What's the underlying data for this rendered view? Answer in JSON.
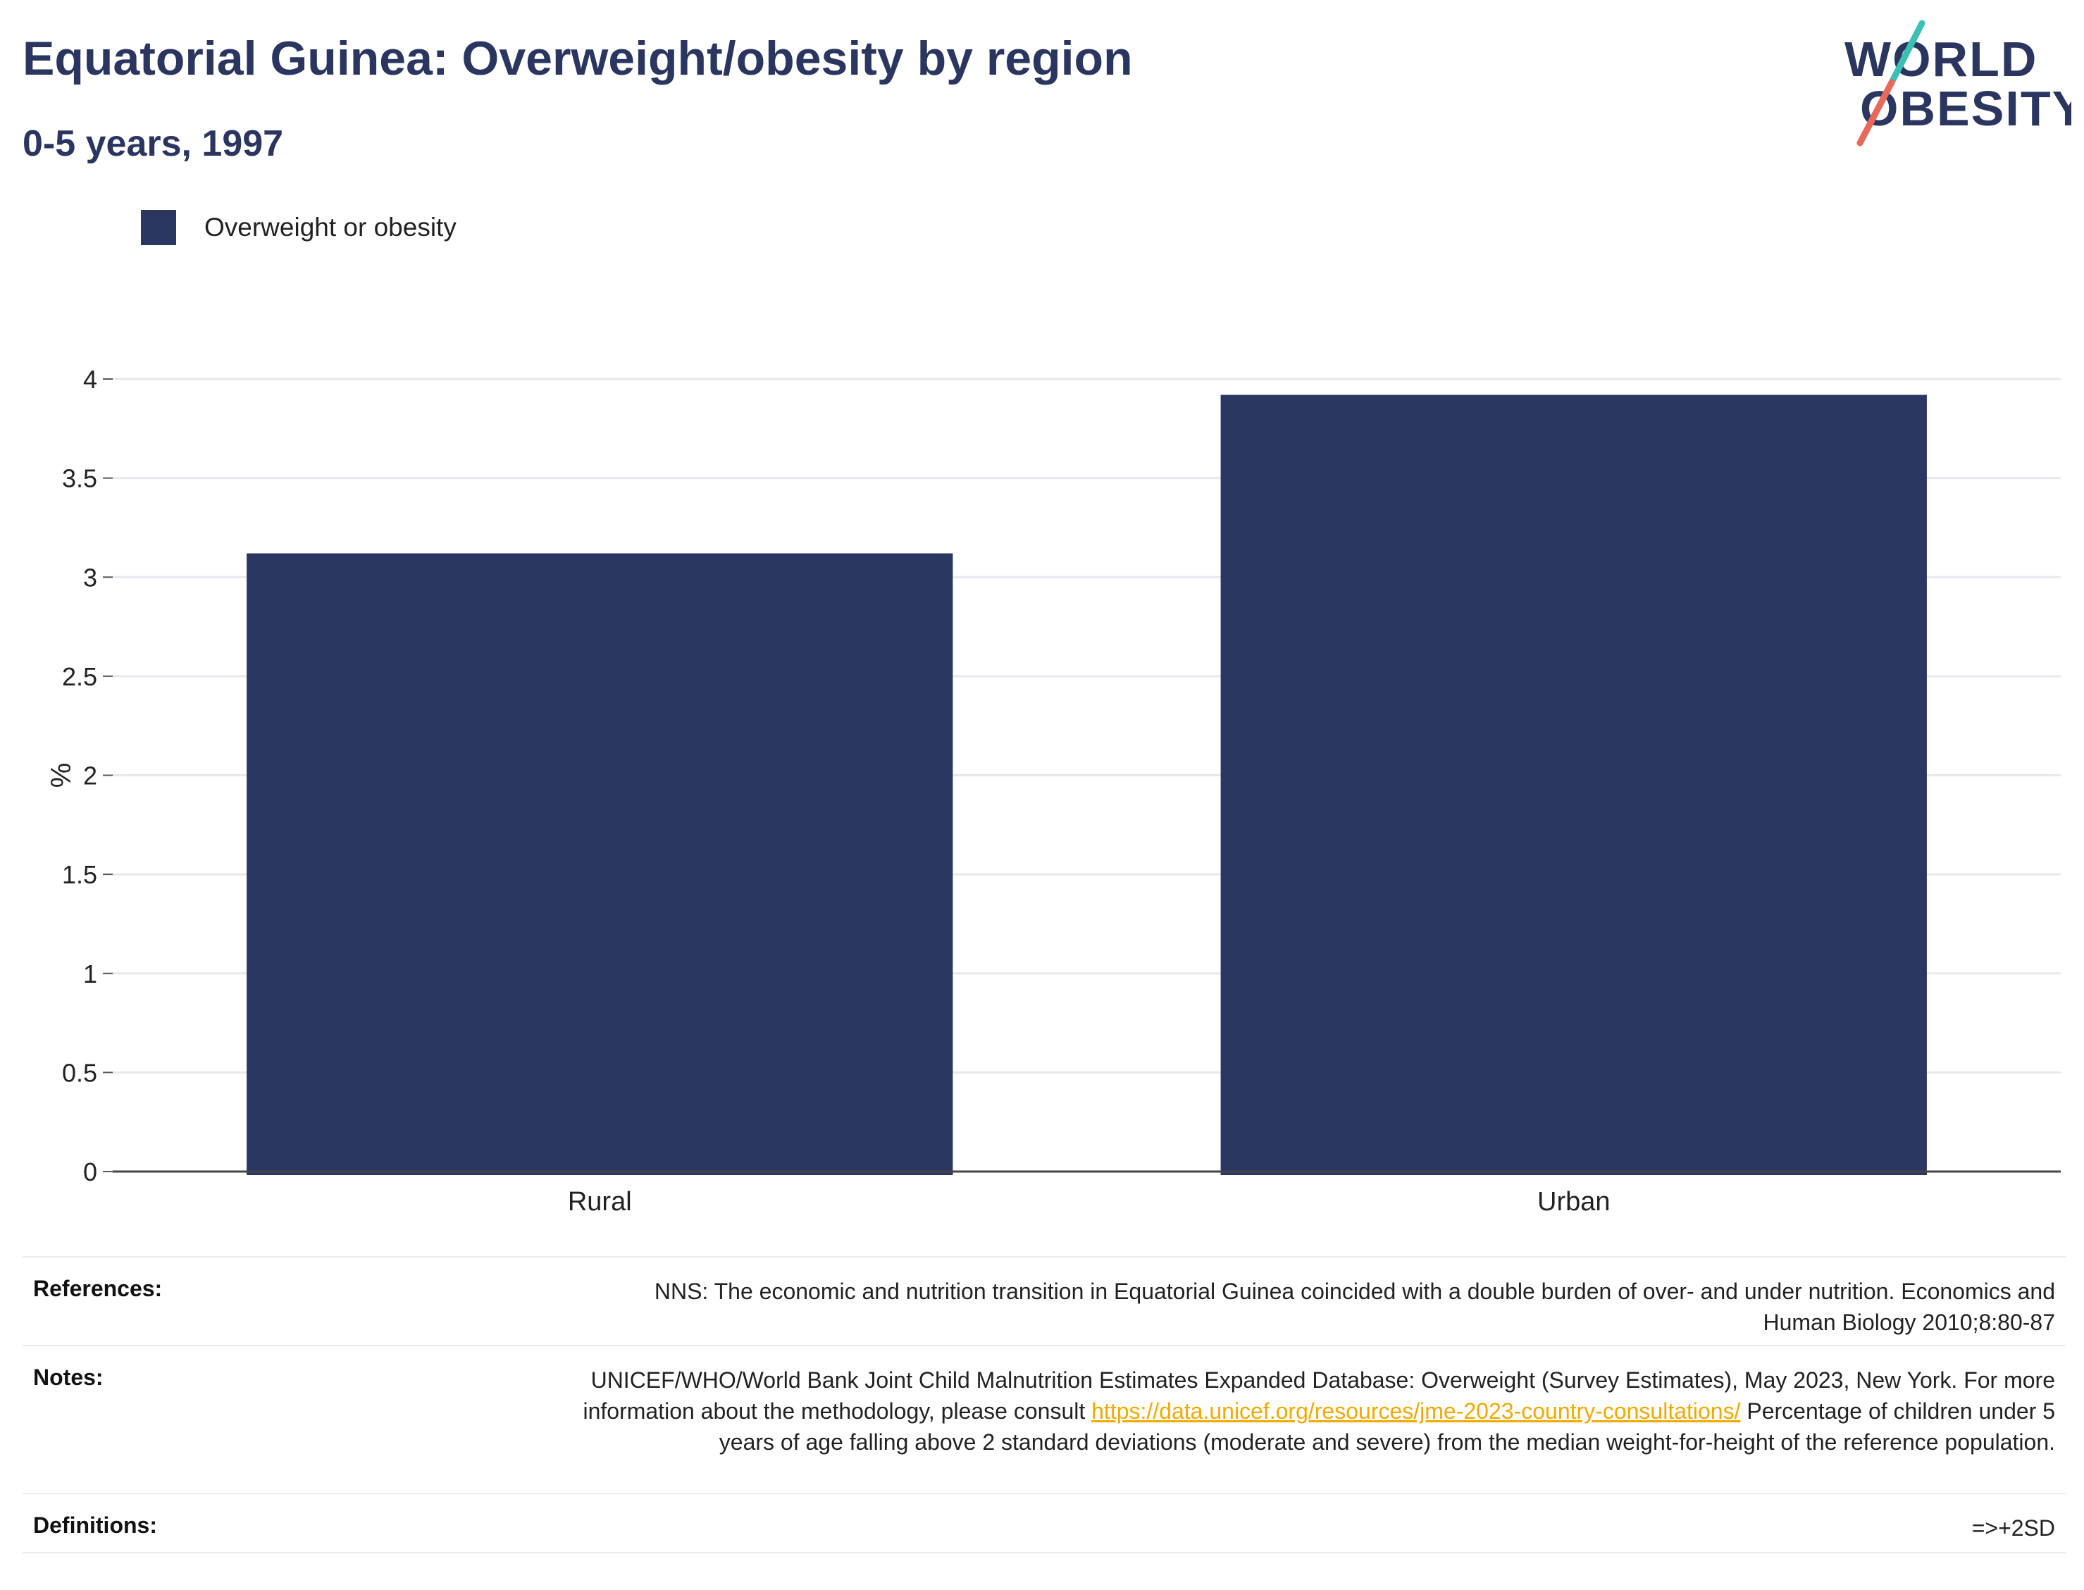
{
  "header": {
    "title": "Equatorial Guinea: Overweight/obesity by region",
    "subtitle": "0-5 years, 1997"
  },
  "logo": {
    "line1": "WORLD",
    "line2": "OBESITY",
    "text_color": "#2a365f",
    "slash_top_color": "#3cbfb4",
    "slash_bottom_color": "#e8685a"
  },
  "legend": {
    "items": [
      {
        "label": "Overweight or obesity",
        "color": "#2a3762"
      }
    ]
  },
  "chart_data": {
    "type": "bar",
    "title": "Equatorial Guinea: Overweight/obesity by region",
    "subtitle": "0-5 years, 1997",
    "categories": [
      "Rural",
      "Urban"
    ],
    "series": [
      {
        "name": "Overweight or obesity",
        "values": [
          3.12,
          3.92
        ],
        "color": "#2a3762"
      }
    ],
    "xlabel": "",
    "ylabel": "%",
    "ylim": [
      0,
      4
    ],
    "yticks": [
      0,
      0.5,
      1,
      1.5,
      2,
      2.5,
      3,
      3.5,
      4
    ],
    "ytick_labels": [
      "0",
      "0.5",
      "1",
      "1.5",
      "2",
      "2.5",
      "3",
      "3.5",
      "4"
    ],
    "grid": true,
    "legend_position": "top-left"
  },
  "notes": {
    "references_label": "References:",
    "references_text": "NNS: The economic and nutrition transition in Equatorial Guinea coincided with a double burden of over- and under nutrition. Economics and Human Biology 2010;8:80-87",
    "notes_label": "Notes:",
    "notes_text_before": "UNICEF/WHO/World Bank Joint Child Malnutrition Estimates Expanded Database: Overweight (Survey Estimates), May 2023, New York. For more information about the methodology, please consult ",
    "notes_link": "https://data.unicef.org/resources/jme-2023-country-consultations/",
    "notes_text_after": " Percentage of children under 5 years of age falling above 2 standard deviations (moderate and severe) from the median weight-for-height of the reference population.",
    "definitions_label": "Definitions:",
    "definitions_text": "=>+2SD"
  }
}
